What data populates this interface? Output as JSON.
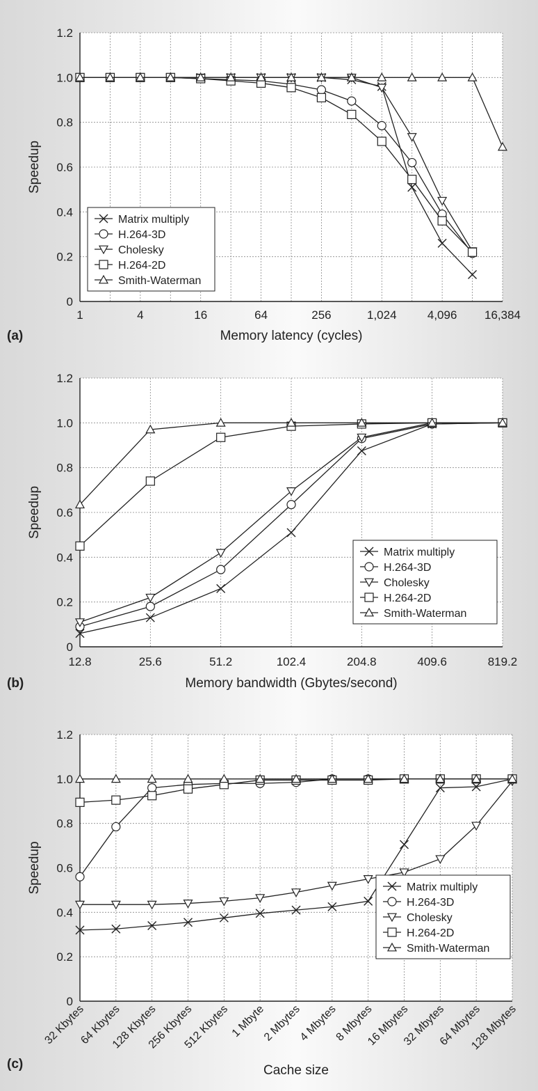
{
  "chart_data": [
    {
      "type": "line",
      "panel_label": "(a)",
      "xlabel": "Memory latency (cycles)",
      "ylabel": "Speedup",
      "ylim": [
        0,
        1.2
      ],
      "y_ticks": [
        "0",
        "0.2",
        "0.4",
        "0.6",
        "0.8",
        "1.0",
        "1.2"
      ],
      "x_tick_labels": [
        "1",
        "4",
        "16",
        "64",
        "256",
        "1,024",
        "4,096",
        "16,384"
      ],
      "x_scale": "log2",
      "x_values": [
        1,
        2,
        4,
        8,
        16,
        32,
        64,
        128,
        256,
        512,
        1024,
        2048,
        4096,
        8192,
        16384
      ],
      "grid": true,
      "legend_position": "bottom-left",
      "series": [
        {
          "name": "Matrix multiply",
          "marker": "x",
          "values": [
            1.0,
            1.0,
            1.0,
            1.0,
            1.0,
            1.0,
            1.0,
            1.0,
            1.0,
            0.99,
            0.96,
            0.51,
            0.26,
            0.12,
            null
          ]
        },
        {
          "name": "H.264-3D",
          "marker": "circle",
          "values": [
            1.0,
            1.0,
            1.0,
            1.0,
            0.995,
            0.99,
            0.985,
            0.97,
            0.945,
            0.895,
            0.785,
            0.62,
            0.39,
            0.215,
            null
          ]
        },
        {
          "name": "Cholesky",
          "marker": "triangle-down",
          "values": [
            1.0,
            1.0,
            1.0,
            1.0,
            1.0,
            1.0,
            1.0,
            1.0,
            1.0,
            1.0,
            0.955,
            0.735,
            0.45,
            0.225,
            null
          ]
        },
        {
          "name": "H.264-2D",
          "marker": "square",
          "values": [
            1.0,
            1.0,
            1.0,
            1.0,
            0.995,
            0.985,
            0.975,
            0.955,
            0.91,
            0.835,
            0.715,
            0.545,
            0.36,
            0.22,
            null
          ]
        },
        {
          "name": "Smith-Waterman",
          "marker": "triangle-up",
          "values": [
            1.0,
            1.0,
            1.0,
            1.0,
            1.0,
            1.0,
            1.0,
            1.0,
            1.0,
            1.0,
            1.0,
            1.0,
            1.0,
            1.0,
            0.69
          ]
        }
      ]
    },
    {
      "type": "line",
      "panel_label": "(b)",
      "xlabel": "Memory bandwidth (Gbytes/second)",
      "ylabel": "Speedup",
      "ylim": [
        0,
        1.2
      ],
      "y_ticks": [
        "0",
        "0.2",
        "0.4",
        "0.6",
        "0.8",
        "1.0",
        "1.2"
      ],
      "x_tick_labels": [
        "12.8",
        "25.6",
        "51.2",
        "102.4",
        "204.8",
        "409.6",
        "819.2"
      ],
      "x_scale": "log2",
      "x_values": [
        12.8,
        25.6,
        51.2,
        102.4,
        204.8,
        409.6,
        819.2
      ],
      "grid": true,
      "legend_position": "bottom-right",
      "series": [
        {
          "name": "Matrix multiply",
          "marker": "x",
          "values": [
            0.06,
            0.13,
            0.26,
            0.51,
            0.875,
            0.995,
            1.0
          ]
        },
        {
          "name": "H.264-3D",
          "marker": "circle",
          "values": [
            0.09,
            0.18,
            0.345,
            0.635,
            0.93,
            0.995,
            1.0
          ]
        },
        {
          "name": "Cholesky",
          "marker": "triangle-down",
          "values": [
            0.11,
            0.22,
            0.42,
            0.695,
            0.935,
            1.0,
            1.0
          ]
        },
        {
          "name": "H.264-2D",
          "marker": "square",
          "values": [
            0.45,
            0.74,
            0.935,
            0.985,
            0.995,
            1.0,
            1.0
          ]
        },
        {
          "name": "Smith-Waterman",
          "marker": "triangle-up",
          "values": [
            0.635,
            0.97,
            1.0,
            1.0,
            1.0,
            1.0,
            1.0
          ]
        }
      ]
    },
    {
      "type": "line",
      "panel_label": "(c)",
      "xlabel": "Cache size",
      "ylabel": "Speedup",
      "ylim": [
        0,
        1.2
      ],
      "y_ticks": [
        "0",
        "0.2",
        "0.4",
        "0.6",
        "0.8",
        "1.0",
        "1.2"
      ],
      "categories": [
        "32 Kbytes",
        "64 Kbytes",
        "128 Kbytes",
        "256 Kbytes",
        "512 Kbytes",
        "1 Mbyte",
        "2 Mbytes",
        "4 Mbytes",
        "8 Mbytes",
        "16 Mbytes",
        "32 Mbytes",
        "64 Mbytes",
        "128 Mbytes"
      ],
      "grid": true,
      "legend_position": "bottom-right",
      "series": [
        {
          "name": "Matrix multiply",
          "marker": "x",
          "values": [
            0.32,
            0.325,
            0.34,
            0.355,
            0.375,
            0.395,
            0.41,
            0.425,
            0.45,
            0.705,
            0.96,
            0.965,
            1.0
          ]
        },
        {
          "name": "H.264-3D",
          "marker": "circle",
          "values": [
            0.56,
            0.785,
            0.96,
            0.975,
            0.98,
            0.98,
            0.985,
            1.0,
            1.0,
            1.0,
            1.0,
            1.0,
            1.0
          ]
        },
        {
          "name": "Cholesky",
          "marker": "triangle-down",
          "values": [
            0.435,
            0.435,
            0.435,
            0.44,
            0.45,
            0.465,
            0.49,
            0.52,
            0.55,
            0.58,
            0.64,
            0.79,
            0.99
          ]
        },
        {
          "name": "H.264-2D",
          "marker": "square",
          "values": [
            0.895,
            0.905,
            0.925,
            0.955,
            0.975,
            0.995,
            0.995,
            0.995,
            0.995,
            1.0,
            1.0,
            1.0,
            1.0
          ]
        },
        {
          "name": "Smith-Waterman",
          "marker": "triangle-up",
          "values": [
            1.0,
            1.0,
            1.0,
            1.0,
            1.0,
            1.0,
            1.0,
            1.0,
            1.0,
            1.0,
            1.0,
            1.0,
            1.0
          ]
        }
      ]
    }
  ]
}
